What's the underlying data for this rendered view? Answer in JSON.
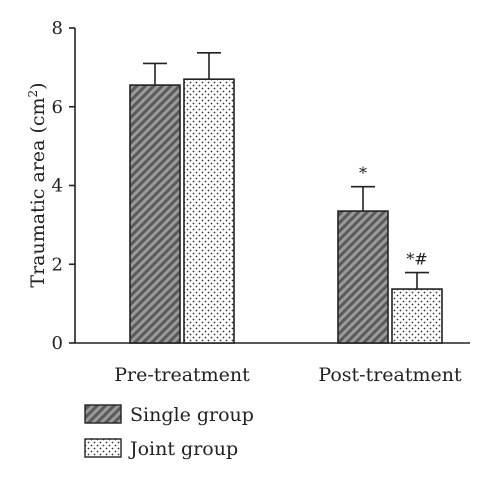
{
  "chart_data": {
    "type": "bar",
    "ylabel": "Traumatic area (cm",
    "ylabel_sup": "2",
    "ylabel_close": ")",
    "categories": [
      "Pre-treatment",
      "Post-treatment"
    ],
    "ylim": [
      0,
      8
    ],
    "yticks": [
      "0",
      "2",
      "4",
      "6",
      "8"
    ],
    "grid": false,
    "legend_position": "bottom-left",
    "series": [
      {
        "name": "Single group",
        "pattern": "diagonal-hatch",
        "color": "#7a7a7a",
        "values": [
          6.55,
          3.35
        ],
        "errors": [
          0.55,
          0.62
        ],
        "annotations": [
          "",
          "*"
        ]
      },
      {
        "name": "Joint group",
        "pattern": "dots",
        "color": "#ffffff",
        "values": [
          6.7,
          1.37
        ],
        "errors": [
          0.67,
          0.42
        ],
        "annotations": [
          "",
          "*#"
        ]
      }
    ]
  }
}
